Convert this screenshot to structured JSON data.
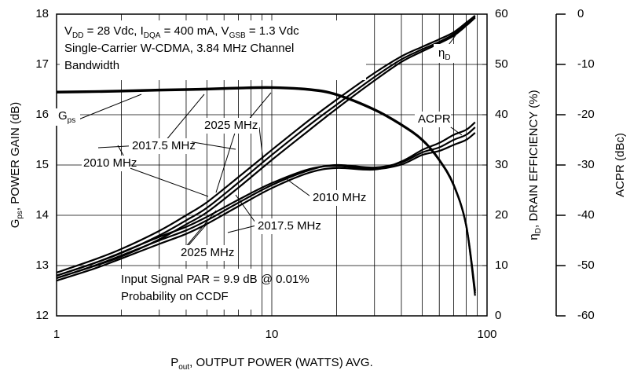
{
  "chart_data": {
    "type": "line",
    "x": [
      1,
      1.5,
      2,
      3,
      4,
      5,
      7,
      10,
      15,
      20,
      30,
      40,
      50,
      60,
      70,
      80,
      88
    ],
    "series": [
      {
        "name": "2010 MHz",
        "color": "#000000",
        "gps": [
          16.44,
          16.45,
          16.46,
          16.48,
          16.49,
          16.5,
          16.52,
          16.53,
          16.49,
          16.39,
          16.09,
          15.79,
          15.49,
          15.09,
          14.59,
          13.79,
          12.4
        ],
        "efficiency": [
          8.6,
          11.2,
          13.3,
          16.9,
          20,
          22.6,
          27.6,
          33,
          39,
          43,
          48.3,
          51.6,
          53.5,
          55,
          56.4,
          58.3,
          59.7
        ],
        "acpr": [
          -52,
          -49.5,
          -47.4,
          -44.3,
          -42.3,
          -40.3,
          -36.9,
          -33.6,
          -30.8,
          -30.2,
          -30.8,
          -29.9,
          -28,
          -27.2,
          -26,
          -25,
          -23.6
        ]
      },
      {
        "name": "2017.5 MHz",
        "color": "#000000",
        "gps": [
          16.45,
          16.46,
          16.47,
          16.49,
          16.5,
          16.51,
          16.53,
          16.54,
          16.5,
          16.4,
          16.1,
          15.8,
          15.5,
          15.1,
          14.6,
          13.8,
          12.45
        ],
        "efficiency": [
          8,
          10.5,
          12.5,
          16,
          19,
          21.5,
          26.5,
          32,
          38,
          42,
          47.5,
          51,
          53,
          54.5,
          56,
          58,
          59.5
        ],
        "acpr": [
          -52.5,
          -50,
          -48,
          -45,
          -43,
          -41,
          -37.5,
          -34,
          -31,
          -30,
          -30.5,
          -29.5,
          -27.5,
          -26.5,
          -25,
          -24,
          -22.5
        ]
      },
      {
        "name": "2025 MHz",
        "color": "#000000",
        "gps": [
          16.46,
          16.47,
          16.48,
          16.5,
          16.51,
          16.52,
          16.54,
          16.55,
          16.51,
          16.41,
          16.11,
          15.81,
          15.51,
          15.11,
          14.61,
          13.81,
          12.5
        ],
        "efficiency": [
          7.5,
          9.9,
          11.8,
          15.2,
          18.2,
          20.6,
          25.5,
          31,
          37,
          41.2,
          46.8,
          50.5,
          52.6,
          54.2,
          55.7,
          57.7,
          59.3
        ],
        "acpr": [
          -53,
          -50.6,
          -48.6,
          -45.7,
          -43.7,
          -41.7,
          -38.2,
          -34.6,
          -31.5,
          -30.6,
          -30.9,
          -29.3,
          -27,
          -25.6,
          -24,
          -23,
          -21.5
        ]
      }
    ],
    "xlim": [
      1,
      100
    ],
    "xticks": [
      1,
      10,
      100
    ],
    "xminor": [
      2,
      3,
      4,
      5,
      6,
      7,
      8,
      9,
      20,
      30,
      40,
      50,
      60,
      70,
      80,
      90
    ],
    "xscale": "log",
    "grid": true,
    "ylim": [
      12,
      18
    ],
    "yticks": [
      12,
      13,
      14,
      15,
      16,
      17,
      18
    ],
    "y2lim": [
      0,
      60
    ],
    "y2ticks": [
      0,
      10,
      20,
      30,
      40,
      50,
      60
    ],
    "y3lim": [
      -60,
      0
    ],
    "y3ticks": [
      -60,
      -50,
      -40,
      -30,
      -20,
      -10,
      0
    ],
    "xlabel": [
      {
        "text": "P"
      },
      {
        "text": "out",
        "sub": true
      },
      {
        "text": ", OUTPUT POWER (WATTS) AVG."
      }
    ],
    "ylabel": [
      {
        "text": "G"
      },
      {
        "text": "ps",
        "sub": true
      },
      {
        "text": ", POWER GAIN (dB)"
      }
    ],
    "y2label": [
      {
        "text": "η"
      },
      {
        "text": "D",
        "sub": true
      },
      {
        "text": ", DRAIN EFFICIENCY (%)"
      }
    ],
    "y3label": [
      {
        "text": "ACPR (dBc)"
      }
    ],
    "conditions": [
      [
        {
          "text": "V"
        },
        {
          "text": "DD",
          "sub": true
        },
        {
          "text": " = 28 Vdc, I"
        },
        {
          "text": "DQA",
          "sub": true
        },
        {
          "text": " = 400 mA, V"
        },
        {
          "text": "GSB",
          "sub": true
        },
        {
          "text": " = 1.3 Vdc"
        }
      ],
      [
        {
          "text": "Single-Carrier W-CDMA, 3.84 MHz Channel"
        }
      ],
      [
        {
          "text": "Bandwidth"
        }
      ]
    ],
    "signal_note": [
      [
        {
          "text": "Input Signal PAR = 9.9 dB @ 0.01%"
        }
      ],
      [
        {
          "text": "Probability on CCDF"
        }
      ]
    ],
    "gps_label": [
      {
        "text": "G"
      },
      {
        "text": "ps",
        "sub": true
      }
    ],
    "efficiency_label": [
      {
        "text": "η"
      },
      {
        "text": "D",
        "sub": true
      }
    ],
    "acpr_label": [
      {
        "text": "ACPR"
      }
    ]
  }
}
